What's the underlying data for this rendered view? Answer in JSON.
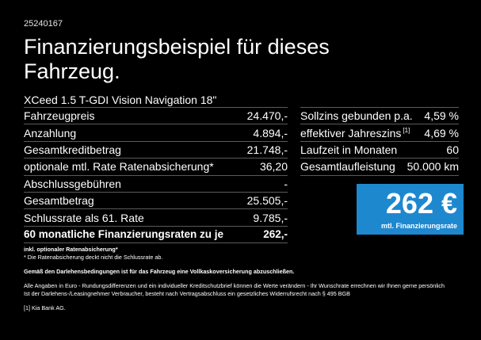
{
  "doc_id": "25240167",
  "heading": "Finanzierungsbeispiel für dieses Fahrzeug.",
  "model": "XCeed 1.5 T-GDI Vision Navigation 18\"",
  "left_rows": [
    {
      "label": "Fahrzeugpreis",
      "value": "24.470,-"
    },
    {
      "label": "Anzahlung",
      "value": "4.894,-"
    },
    {
      "label": "Gesamtkreditbetrag",
      "value": "21.748,-"
    },
    {
      "label": "optionale mtl. Rate Ratenabsicherung*",
      "value": "36,20"
    },
    {
      "label": "Abschlussgebühren",
      "value": "-"
    },
    {
      "label": "Gesamtbetrag",
      "value": "25.505,-"
    },
    {
      "label": "Schlussrate als 61. Rate",
      "value": "9.785,-"
    },
    {
      "label": "60 monatliche Finanzierungsraten zu je",
      "value": "262,-"
    }
  ],
  "right_rows": [
    {
      "label": "Sollzins gebunden p.a.",
      "sup": "",
      "value": "4,59 %"
    },
    {
      "label": "effektiver Jahreszins",
      "sup": "[1]",
      "value": "4,69 %"
    },
    {
      "label": "Laufzeit in Monaten",
      "sup": "",
      "value": "60"
    },
    {
      "label": "Gesamtlaufleistung",
      "sup": "",
      "value": "50.000 km"
    }
  ],
  "rate_box": {
    "value": "262 €",
    "caption": "mtl. Finanzierungsrate",
    "color": "#1e88cf"
  },
  "notes": {
    "incl_title": "inkl. optionaler Ratenabsicherung*",
    "incl_text": "* Die Ratenabsicherung deckt nicht die Schlussrate ab.",
    "terms_bold": "Gemäß den Darlehensbedingungen ist für das Fahrzeug eine Vollkaskoversicherung abzuschließen.",
    "terms_line1": "Alle Angaben in Euro - Rundungsdifferenzen und ein individueller Kreditschutzbrief können die Werte verändern - Ihr Wunschrate errechnen wir Ihnen gerne persönlich",
    "terms_line2": "Ist der Darlehens-/Leasingnehmer Verbraucher, besteht nach Vertragsabschluss ein gesetzliches Widerrufsrecht nach § 495 BGB",
    "footnote": "[1]  Kia Bank AG."
  }
}
